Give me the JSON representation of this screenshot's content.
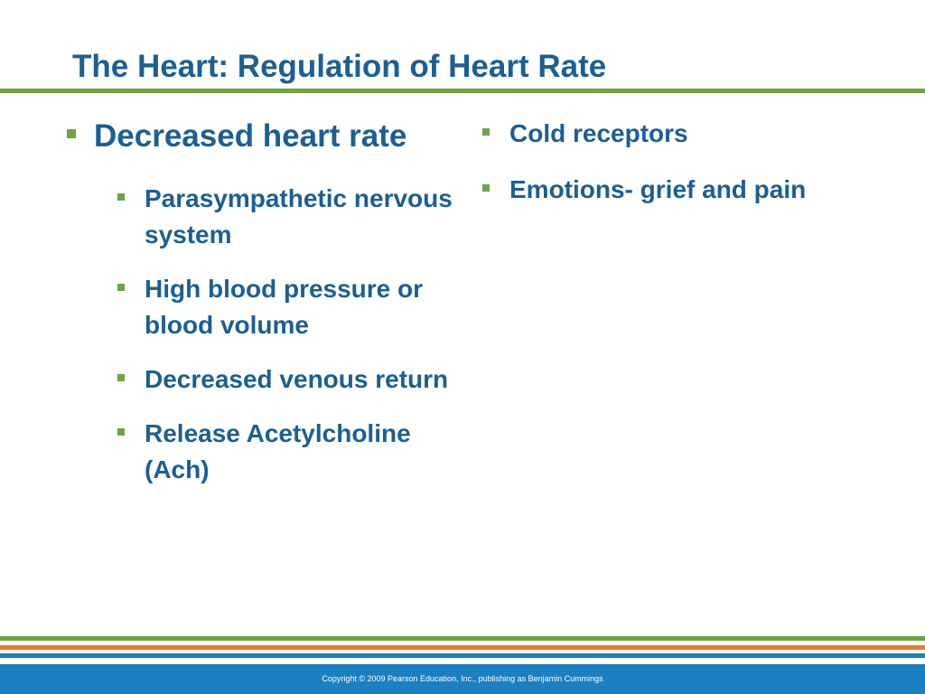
{
  "slide": {
    "title": "The Heart: Regulation of Heart Rate",
    "left_column": {
      "heading": "Decreased heart rate",
      "items": [
        "Parasympathetic nervous system",
        "High blood pressure or blood volume",
        "Decreased venous return",
        "Release Acetylcholine (Ach)"
      ]
    },
    "right_column": {
      "items": [
        "Cold receptors",
        "Emotions- grief and pain"
      ]
    },
    "footer": {
      "copyright": "Copyright © 2009 Pearson Education, Inc., publishing as Benjamin Cummings"
    }
  },
  "colors": {
    "title_text": "#1a5f95",
    "bullet_marker": "#6ea244",
    "stripe_green": "#6ea244",
    "stripe_orange": "#e8782c",
    "stripe_blue": "#1b7fc1"
  }
}
